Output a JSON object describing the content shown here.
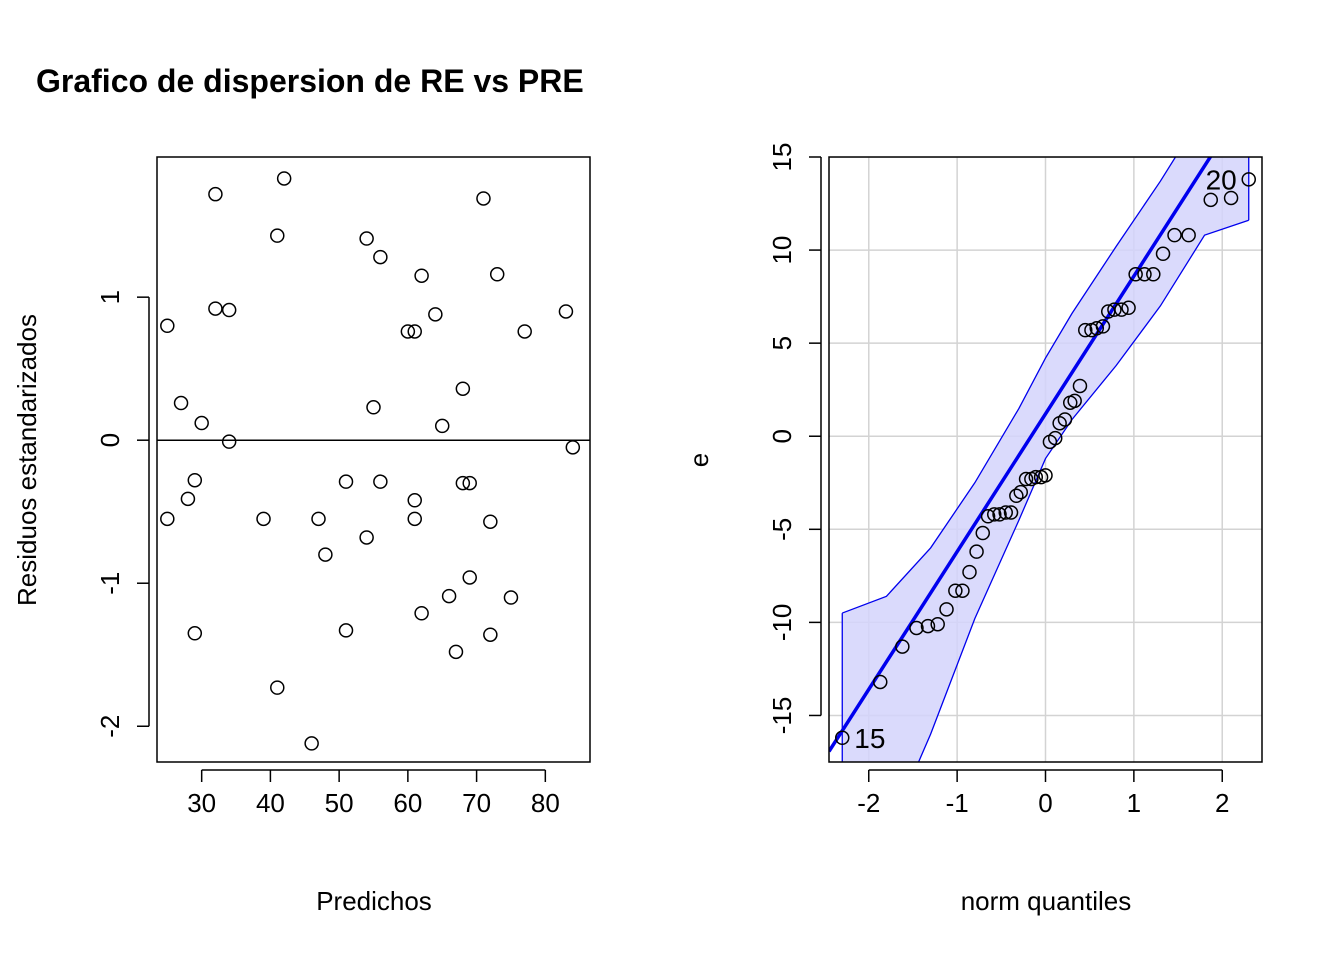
{
  "chart_data": [
    {
      "type": "scatter",
      "title": "Grafico de dispersion de RE vs PRE",
      "xlabel": "Predichos",
      "ylabel": "Residuos estandarizados",
      "xlim": [
        23.5,
        86.5
      ],
      "ylim": [
        -2.25,
        1.98
      ],
      "x_ticks": [
        30,
        40,
        50,
        60,
        70,
        80
      ],
      "y_ticks": [
        -2,
        -1,
        0,
        1
      ],
      "hline": 0,
      "grid": false,
      "points": [
        {
          "x": 25.0,
          "y": 0.8
        },
        {
          "x": 25.0,
          "y": -0.55
        },
        {
          "x": 27.0,
          "y": 0.26
        },
        {
          "x": 28.0,
          "y": -0.41
        },
        {
          "x": 29.0,
          "y": -0.28
        },
        {
          "x": 29.0,
          "y": -1.35
        },
        {
          "x": 30.0,
          "y": 0.12
        },
        {
          "x": 32.0,
          "y": 1.72
        },
        {
          "x": 32.0,
          "y": 0.92
        },
        {
          "x": 34.0,
          "y": 0.91
        },
        {
          "x": 34.0,
          "y": -0.01
        },
        {
          "x": 39.0,
          "y": -0.55
        },
        {
          "x": 41.0,
          "y": 1.43
        },
        {
          "x": 41.0,
          "y": -1.73
        },
        {
          "x": 42.0,
          "y": 1.83
        },
        {
          "x": 46.0,
          "y": -2.12
        },
        {
          "x": 47.0,
          "y": -0.55
        },
        {
          "x": 48.0,
          "y": -0.8
        },
        {
          "x": 51.0,
          "y": -0.29
        },
        {
          "x": 51.0,
          "y": -1.33
        },
        {
          "x": 54.0,
          "y": 1.41
        },
        {
          "x": 54.0,
          "y": -0.68
        },
        {
          "x": 55.0,
          "y": 0.23
        },
        {
          "x": 56.0,
          "y": 1.28
        },
        {
          "x": 56.0,
          "y": -0.29
        },
        {
          "x": 60.0,
          "y": 0.76
        },
        {
          "x": 61.0,
          "y": 0.76
        },
        {
          "x": 61.0,
          "y": -0.42
        },
        {
          "x": 61.0,
          "y": -0.55
        },
        {
          "x": 62.0,
          "y": 1.15
        },
        {
          "x": 62.0,
          "y": -1.21
        },
        {
          "x": 64.0,
          "y": 0.88
        },
        {
          "x": 65.0,
          "y": 0.1
        },
        {
          "x": 66.0,
          "y": -1.09
        },
        {
          "x": 67.0,
          "y": -1.48
        },
        {
          "x": 68.0,
          "y": 0.36
        },
        {
          "x": 68.0,
          "y": -0.3
        },
        {
          "x": 69.0,
          "y": -0.3
        },
        {
          "x": 69.0,
          "y": -0.96
        },
        {
          "x": 71.0,
          "y": 1.69
        },
        {
          "x": 72.0,
          "y": -0.57
        },
        {
          "x": 72.0,
          "y": -1.36
        },
        {
          "x": 73.0,
          "y": 1.16
        },
        {
          "x": 75.0,
          "y": -1.1
        },
        {
          "x": 77.0,
          "y": 0.76
        },
        {
          "x": 83.0,
          "y": 0.9
        },
        {
          "x": 84.0,
          "y": -0.05
        }
      ]
    },
    {
      "type": "scatter",
      "title": "",
      "xlabel": "norm quantiles",
      "ylabel": "e",
      "xlim": [
        -2.45,
        2.45
      ],
      "ylim": [
        -17.5,
        15.0
      ],
      "x_ticks": [
        -2,
        -1,
        0,
        1,
        2
      ],
      "y_ticks": [
        -15,
        -10,
        -5,
        0,
        5,
        10,
        15
      ],
      "grid": true,
      "reference_line": {
        "intercept": 1.2,
        "slope": 7.4,
        "color": "#0000ee"
      },
      "envelope": {
        "fill": "#d4d4fb",
        "stroke": "#0000ee",
        "x": [
          -2.3,
          -1.8,
          -1.3,
          -0.8,
          -0.3,
          0.0,
          0.3,
          0.8,
          1.3,
          1.8,
          2.3
        ],
        "upper": [
          -9.5,
          -8.6,
          -6.0,
          -2.5,
          1.5,
          4.2,
          6.6,
          10.2,
          13.7,
          17.5,
          21.0
        ],
        "lower": [
          -26.0,
          -21.5,
          -16.0,
          -9.8,
          -4.5,
          -1.2,
          0.9,
          3.8,
          7.0,
          10.8,
          11.6
        ]
      },
      "labels": [
        {
          "text": "20",
          "x": 2.3,
          "y": 13.8
        },
        {
          "text": "15",
          "x": -2.3,
          "y": -16.2
        }
      ],
      "points": [
        {
          "x": -2.3,
          "y": -16.2
        },
        {
          "x": -1.87,
          "y": -13.2
        },
        {
          "x": -1.62,
          "y": -11.3
        },
        {
          "x": -1.46,
          "y": -10.3
        },
        {
          "x": -1.33,
          "y": -10.2
        },
        {
          "x": -1.22,
          "y": -10.1
        },
        {
          "x": -1.12,
          "y": -9.3
        },
        {
          "x": -1.02,
          "y": -8.3
        },
        {
          "x": -0.94,
          "y": -8.3
        },
        {
          "x": -0.86,
          "y": -7.3
        },
        {
          "x": -0.78,
          "y": -6.2
        },
        {
          "x": -0.71,
          "y": -5.2
        },
        {
          "x": -0.65,
          "y": -4.3
        },
        {
          "x": -0.58,
          "y": -4.2
        },
        {
          "x": -0.52,
          "y": -4.2
        },
        {
          "x": -0.45,
          "y": -4.1
        },
        {
          "x": -0.39,
          "y": -4.1
        },
        {
          "x": -0.33,
          "y": -3.2
        },
        {
          "x": -0.28,
          "y": -3.0
        },
        {
          "x": -0.22,
          "y": -2.3
        },
        {
          "x": -0.16,
          "y": -2.3
        },
        {
          "x": -0.11,
          "y": -2.2
        },
        {
          "x": -0.05,
          "y": -2.2
        },
        {
          "x": 0.0,
          "y": -2.1
        },
        {
          "x": 0.05,
          "y": -0.3
        },
        {
          "x": 0.11,
          "y": -0.1
        },
        {
          "x": 0.16,
          "y": 0.7
        },
        {
          "x": 0.22,
          "y": 0.9
        },
        {
          "x": 0.28,
          "y": 1.8
        },
        {
          "x": 0.33,
          "y": 1.9
        },
        {
          "x": 0.39,
          "y": 2.7
        },
        {
          "x": 0.45,
          "y": 5.7
        },
        {
          "x": 0.52,
          "y": 5.7
        },
        {
          "x": 0.58,
          "y": 5.8
        },
        {
          "x": 0.65,
          "y": 5.9
        },
        {
          "x": 0.71,
          "y": 6.7
        },
        {
          "x": 0.78,
          "y": 6.8
        },
        {
          "x": 0.86,
          "y": 6.8
        },
        {
          "x": 0.94,
          "y": 6.9
        },
        {
          "x": 1.02,
          "y": 8.7
        },
        {
          "x": 1.12,
          "y": 8.7
        },
        {
          "x": 1.22,
          "y": 8.7
        },
        {
          "x": 1.33,
          "y": 9.8
        },
        {
          "x": 1.46,
          "y": 10.8
        },
        {
          "x": 1.62,
          "y": 10.8
        },
        {
          "x": 1.87,
          "y": 12.7
        },
        {
          "x": 2.1,
          "y": 12.8
        },
        {
          "x": 2.3,
          "y": 13.8
        }
      ]
    }
  ]
}
